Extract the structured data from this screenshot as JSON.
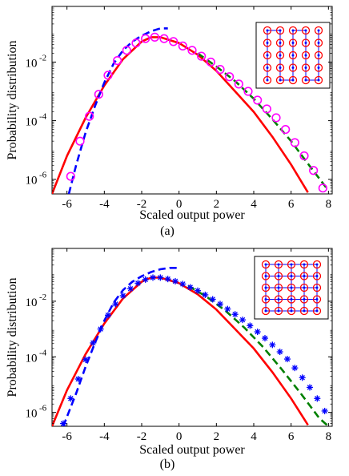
{
  "chart_data": [
    {
      "type": "line",
      "panel_label": "(a)",
      "xlabel": "Scaled output power",
      "ylabel": "Probability distribution",
      "xlim": [
        -6.8,
        8.2
      ],
      "ylim_log10": [
        -6.5,
        -0.1
      ],
      "y_scale": "log",
      "x_ticks": [
        "-6",
        "-4",
        "-2",
        "0",
        "2",
        "4",
        "6",
        "8"
      ],
      "x_tick_values": [
        -6,
        -4,
        -2,
        0,
        2,
        4,
        6,
        8
      ],
      "y_ticks": [
        "10",
        "10",
        "10"
      ],
      "y_tick_exponents": [
        "-2",
        "-4",
        "-6"
      ],
      "y_tick_values_log10": [
        -2,
        -4,
        -6
      ],
      "series": [
        {
          "style": "solid",
          "color": "#ff0000",
          "x": [
            -6.8,
            -6.0,
            -5.0,
            -4.0,
            -3.0,
            -2.0,
            -1.5,
            -1.0,
            0.0,
            1.0,
            2.0,
            3.0,
            4.0,
            5.0,
            6.0,
            6.9
          ],
          "log10_y": [
            -6.5,
            -5.2,
            -3.9,
            -2.8,
            -1.9,
            -1.3,
            -1.15,
            -1.15,
            -1.35,
            -1.75,
            -2.3,
            -3.0,
            -3.7,
            -4.55,
            -5.5,
            -6.45
          ]
        },
        {
          "style": "dashed",
          "color": "#0000ff",
          "x": [
            -5.9,
            -5.5,
            -5.0,
            -4.5,
            -4.0,
            -3.5,
            -3.0,
            -2.5,
            -2.0,
            -1.5,
            -1.0,
            -0.6
          ],
          "log10_y": [
            -6.5,
            -5.5,
            -4.4,
            -3.5,
            -2.7,
            -2.05,
            -1.6,
            -1.3,
            -1.1,
            -0.95,
            -0.85,
            -0.85
          ]
        },
        {
          "style": "dashed",
          "color": "#008000",
          "x": [
            1.0,
            2.0,
            3.0,
            4.0,
            5.0,
            6.0,
            7.0,
            7.9
          ],
          "log10_y": [
            -1.7,
            -2.15,
            -2.65,
            -3.25,
            -3.95,
            -4.7,
            -5.55,
            -6.3
          ]
        },
        {
          "style": "marker-circle",
          "color": "#ff00ff",
          "x": [
            -5.8,
            -5.3,
            -4.8,
            -4.3,
            -3.8,
            -3.3,
            -2.8,
            -2.3,
            -1.8,
            -1.3,
            -0.8,
            -0.3,
            0.2,
            0.7,
            1.2,
            1.7,
            2.2,
            2.7,
            3.2,
            3.7,
            4.2,
            4.7,
            5.2,
            5.7,
            6.2,
            6.7,
            7.2,
            7.7
          ],
          "log10_y": [
            -5.9,
            -4.7,
            -3.85,
            -3.1,
            -2.45,
            -1.95,
            -1.6,
            -1.35,
            -1.2,
            -1.15,
            -1.2,
            -1.3,
            -1.45,
            -1.6,
            -1.8,
            -2.0,
            -2.25,
            -2.5,
            -2.75,
            -3.0,
            -3.3,
            -3.6,
            -3.9,
            -4.3,
            -4.75,
            -5.2,
            -5.7,
            -6.3
          ]
        }
      ]
    },
    {
      "type": "line",
      "panel_label": "(b)",
      "xlabel": "Scaled output power",
      "ylabel": "Probability distribution",
      "xlim": [
        -6.8,
        8.2
      ],
      "ylim_log10": [
        -6.5,
        -0.1
      ],
      "y_scale": "log",
      "x_ticks": [
        "-6",
        "-4",
        "-2",
        "0",
        "2",
        "4",
        "6",
        "8"
      ],
      "x_tick_values": [
        -6,
        -4,
        -2,
        0,
        2,
        4,
        6,
        8
      ],
      "y_ticks": [
        "10",
        "10",
        "10"
      ],
      "y_tick_exponents": [
        "-2",
        "-4",
        "-6"
      ],
      "y_tick_values_log10": [
        -2,
        -4,
        -6
      ],
      "series": [
        {
          "style": "solid",
          "color": "#ff0000",
          "x": [
            -6.8,
            -6.0,
            -5.0,
            -4.0,
            -3.0,
            -2.0,
            -1.5,
            -1.0,
            0.0,
            1.0,
            2.0,
            3.0,
            4.0,
            5.0,
            6.0,
            6.9
          ],
          "log10_y": [
            -6.5,
            -5.2,
            -3.9,
            -2.8,
            -1.9,
            -1.3,
            -1.15,
            -1.15,
            -1.35,
            -1.75,
            -2.3,
            -3.0,
            -3.7,
            -4.55,
            -5.5,
            -6.45
          ]
        },
        {
          "style": "dashed",
          "color": "#0000ff",
          "x": [
            -6.2,
            -5.5,
            -5.0,
            -4.5,
            -4.0,
            -3.5,
            -3.0,
            -2.5,
            -2.0,
            -1.5,
            -1.0,
            -0.5,
            0.0
          ],
          "log10_y": [
            -6.5,
            -5.3,
            -4.35,
            -3.5,
            -2.7,
            -2.05,
            -1.6,
            -1.3,
            -1.1,
            -0.95,
            -0.85,
            -0.8,
            -0.8
          ]
        },
        {
          "style": "dashed",
          "color": "#008000",
          "x": [
            0.5,
            1.5,
            2.5,
            3.5,
            4.5,
            5.5,
            6.5,
            7.5,
            8.0
          ],
          "log10_y": [
            -1.45,
            -1.85,
            -2.35,
            -2.95,
            -3.65,
            -4.45,
            -5.3,
            -6.2,
            -6.5
          ]
        },
        {
          "style": "marker-star",
          "color": "#0000ff",
          "x": [
            -6.2,
            -5.8,
            -5.4,
            -5.0,
            -4.6,
            -4.2,
            -3.8,
            -3.4,
            -3.0,
            -2.6,
            -2.2,
            -1.8,
            -1.4,
            -1.0,
            -0.6,
            -0.2,
            0.2,
            0.6,
            1.0,
            1.4,
            1.8,
            2.2,
            2.6,
            3.0,
            3.4,
            3.8,
            4.2,
            4.6,
            5.0,
            5.4,
            5.8,
            6.2,
            6.6,
            7.0,
            7.4,
            7.8
          ],
          "log10_y": [
            -6.4,
            -5.5,
            -4.8,
            -4.1,
            -3.5,
            -3.0,
            -2.5,
            -2.1,
            -1.8,
            -1.55,
            -1.35,
            -1.22,
            -1.15,
            -1.15,
            -1.2,
            -1.28,
            -1.38,
            -1.5,
            -1.62,
            -1.77,
            -1.93,
            -2.1,
            -2.28,
            -2.47,
            -2.67,
            -2.88,
            -3.1,
            -3.33,
            -3.57,
            -3.82,
            -4.08,
            -4.4,
            -4.75,
            -5.1,
            -5.5,
            -5.95
          ]
        }
      ]
    }
  ]
}
